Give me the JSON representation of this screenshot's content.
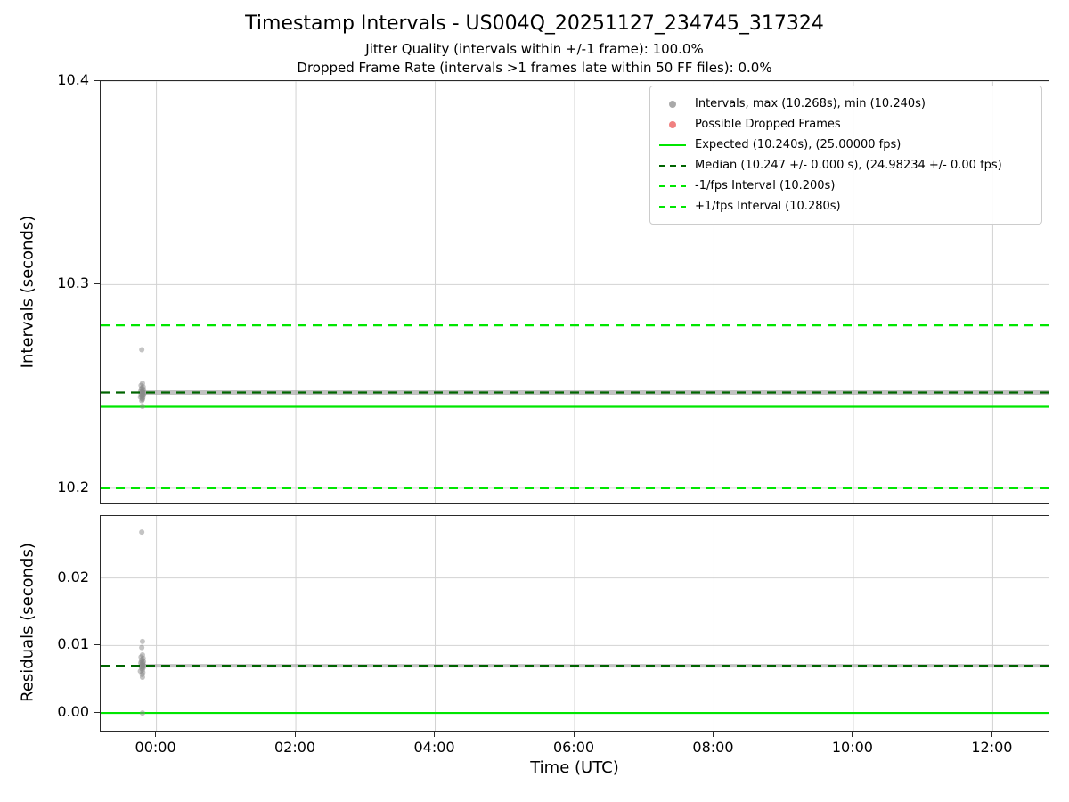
{
  "figure": {
    "title": "Timestamp Intervals - US004Q_20251127_234745_317324",
    "subtitle1": "Jitter Quality (intervals within +/-1 frame): 100.0%",
    "subtitle2": "Dropped Frame Rate (intervals >1 frames late within 50 FF files): 0.0%",
    "xlabel": "Time (UTC)"
  },
  "colors": {
    "bright_green": "#00e600",
    "dark_green": "#006400",
    "scatter_gray": "#8a8a8a",
    "band_gray": "#9a9a9a",
    "dropped_red": "#f08080",
    "grid": "#d2d2d2",
    "spine": "#2a2a2a",
    "legend_dot_gray": "#a9a9a9"
  },
  "legend": {
    "items": [
      {
        "name": "intervals",
        "marker": "dot",
        "dash": false,
        "color": "#a9a9a9",
        "label": "Intervals, max (10.268s), min (10.240s)"
      },
      {
        "name": "dropped-frames",
        "marker": "dot",
        "dash": false,
        "color": "#f08080",
        "label": "Possible Dropped Frames"
      },
      {
        "name": "expected",
        "marker": "line",
        "dash": false,
        "color": "#00e600",
        "label": "Expected (10.240s), (25.00000 fps)"
      },
      {
        "name": "median",
        "marker": "line",
        "dash": true,
        "color": "#006400",
        "label": "Median (10.247 +/- 0.000 s), (24.98234 +/- 0.00 fps)"
      },
      {
        "name": "minus-1fps-interval",
        "marker": "line",
        "dash": true,
        "color": "#00e600",
        "label": "-1/fps Interval (10.200s)"
      },
      {
        "name": "plus-1fps-interval",
        "marker": "line",
        "dash": true,
        "color": "#00e600",
        "label": "+1/fps Interval (10.280s)"
      }
    ]
  },
  "chart_data": [
    {
      "type": "scatter",
      "name": "intervals-vs-time",
      "ylabel": "Intervals (seconds)",
      "ylim": [
        10.1925,
        10.4
      ],
      "yticks": [
        {
          "v": 10.2,
          "label": "10.2"
        },
        {
          "v": 10.3,
          "label": "10.3"
        },
        {
          "v": 10.4,
          "label": "10.4"
        }
      ],
      "xlim_hours": [
        -0.8,
        12.8
      ],
      "xticks": [
        {
          "h": 0,
          "label": "00:00"
        },
        {
          "h": 2,
          "label": "02:00"
        },
        {
          "h": 4,
          "label": "04:00"
        },
        {
          "h": 6,
          "label": "06:00"
        },
        {
          "h": 8,
          "label": "08:00"
        },
        {
          "h": 10,
          "label": "10:00"
        },
        {
          "h": 12,
          "label": "12:00"
        }
      ],
      "show_xtick_labels": false,
      "grid": true,
      "hlines": [
        {
          "name": "expected",
          "y": 10.24,
          "color": "#00e600",
          "dash": false,
          "z": "under"
        },
        {
          "name": "minus-1fps-interval",
          "y": 10.2,
          "color": "#00e600",
          "dash": true,
          "z": "under"
        },
        {
          "name": "plus-1fps-interval",
          "y": 10.28,
          "color": "#00e600",
          "dash": true,
          "z": "under"
        },
        {
          "name": "median",
          "y": 10.247,
          "color": "#006400",
          "dash": true,
          "z": "over"
        }
      ],
      "run": {
        "y": 10.247,
        "x_start_hours": -0.22,
        "x_end_hours": 12.8
      },
      "points": [
        [
          -0.21,
          10.268
        ],
        [
          -0.2,
          10.2515
        ],
        [
          -0.22,
          10.2505
        ],
        [
          -0.19,
          10.2498
        ],
        [
          -0.205,
          10.2492
        ],
        [
          -0.215,
          10.2488
        ],
        [
          -0.185,
          10.2484
        ],
        [
          -0.2,
          10.248
        ],
        [
          -0.225,
          10.2477
        ],
        [
          -0.195,
          10.2474
        ],
        [
          -0.21,
          10.2471
        ],
        [
          -0.2,
          10.2468
        ],
        [
          -0.18,
          10.2465
        ],
        [
          -0.22,
          10.2463
        ],
        [
          -0.2,
          10.246
        ],
        [
          -0.19,
          10.2457
        ],
        [
          -0.21,
          10.2454
        ],
        [
          -0.2,
          10.2451
        ],
        [
          -0.23,
          10.2448
        ],
        [
          -0.195,
          10.2445
        ],
        [
          -0.205,
          10.2441
        ],
        [
          -0.2,
          10.2436
        ],
        [
          -0.21,
          10.243
        ],
        [
          -0.2,
          10.2402
        ]
      ],
      "stats": {
        "max_s": 10.268,
        "min_s": 10.24,
        "median_s": 10.247,
        "expected_s": 10.24,
        "expected_fps": 25.0,
        "median_fps": 24.98234,
        "jitter_quality_pct": 100.0,
        "dropped_frame_rate_pct": 0.0,
        "ff_files": 50
      }
    },
    {
      "type": "scatter",
      "name": "residuals-vs-time",
      "ylabel": "Residuals (seconds)",
      "ylim": [
        -0.00263,
        0.0292
      ],
      "yticks": [
        {
          "v": 0.0,
          "label": "0.00"
        },
        {
          "v": 0.01,
          "label": "0.01"
        },
        {
          "v": 0.02,
          "label": "0.02"
        }
      ],
      "xlim_hours": [
        -0.8,
        12.8
      ],
      "xticks": [
        {
          "h": 0,
          "label": "00:00"
        },
        {
          "h": 2,
          "label": "02:00"
        },
        {
          "h": 4,
          "label": "04:00"
        },
        {
          "h": 6,
          "label": "06:00"
        },
        {
          "h": 8,
          "label": "08:00"
        },
        {
          "h": 10,
          "label": "10:00"
        },
        {
          "h": 12,
          "label": "12:00"
        }
      ],
      "show_xtick_labels": true,
      "grid": true,
      "hlines": [
        {
          "name": "zero-expected",
          "y": 0.0,
          "color": "#00e600",
          "dash": false,
          "z": "under"
        },
        {
          "name": "median-residual",
          "y": 0.007,
          "color": "#006400",
          "dash": true,
          "z": "over"
        }
      ],
      "run": {
        "y": 0.007,
        "x_start_hours": -0.22,
        "x_end_hours": 12.8
      },
      "points": [
        [
          -0.21,
          0.0268
        ],
        [
          -0.2,
          0.0106
        ],
        [
          -0.21,
          0.0097
        ],
        [
          -0.2,
          0.0086
        ],
        [
          -0.22,
          0.0083
        ],
        [
          -0.19,
          0.0081
        ],
        [
          -0.205,
          0.0079
        ],
        [
          -0.215,
          0.0077
        ],
        [
          -0.185,
          0.0076
        ],
        [
          -0.2,
          0.0075
        ],
        [
          -0.225,
          0.0074
        ],
        [
          -0.195,
          0.0073
        ],
        [
          -0.21,
          0.0072
        ],
        [
          -0.2,
          0.0071
        ],
        [
          -0.18,
          0.007
        ],
        [
          -0.22,
          0.0069
        ],
        [
          -0.2,
          0.0068
        ],
        [
          -0.19,
          0.0067
        ],
        [
          -0.21,
          0.0066
        ],
        [
          -0.2,
          0.0064
        ],
        [
          -0.23,
          0.0062
        ],
        [
          -0.195,
          0.006
        ],
        [
          -0.205,
          0.0057
        ],
        [
          -0.2,
          0.0053
        ],
        [
          -0.2,
          0.0
        ]
      ]
    }
  ]
}
